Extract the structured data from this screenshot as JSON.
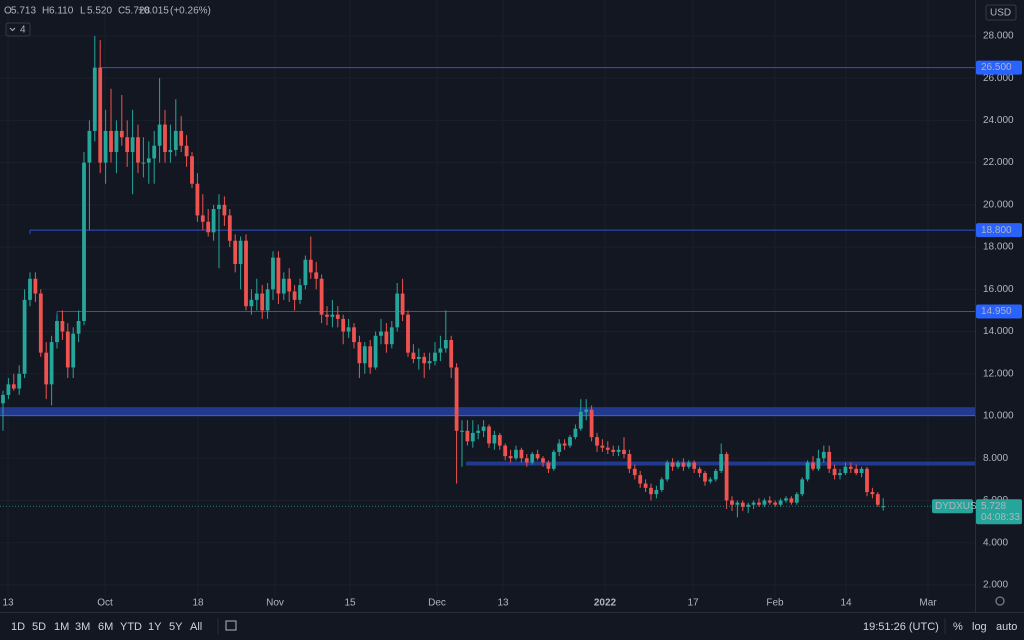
{
  "chart_data": {
    "type": "candlestick",
    "symbol": "DYDXUSD",
    "legend": [
      {
        "key": "O",
        "value": "5.713"
      },
      {
        "key": "H",
        "value": "6.110"
      },
      {
        "key": "L",
        "value": "5.520"
      },
      {
        "key": "C",
        "value": "5.728"
      }
    ],
    "change": "+0.015",
    "change_pct": "(+0.26%)",
    "indicator_count": 4,
    "currency": "USD",
    "up_color": "#26a69a",
    "down_color": "#ef5350",
    "level_color": "#2f4fd0",
    "zone_color": "#213a8f",
    "ylim": [
      1.43,
      29.7
    ],
    "yticks": [
      {
        "value": 2,
        "label": "2.000"
      },
      {
        "value": 4,
        "label": "4.000"
      },
      {
        "value": 6,
        "label": "6.000"
      },
      {
        "value": 8,
        "label": "8.000"
      },
      {
        "value": 10,
        "label": "10.000"
      },
      {
        "value": 12,
        "label": "12.000"
      },
      {
        "value": 14,
        "label": "14.000"
      },
      {
        "value": 16,
        "label": "16.000"
      },
      {
        "value": 18,
        "label": "18.000"
      },
      {
        "value": 20,
        "label": "20.000"
      },
      {
        "value": 22,
        "label": "22.000"
      },
      {
        "value": 24,
        "label": "24.000"
      },
      {
        "value": 26,
        "label": "26.000"
      },
      {
        "value": 28,
        "label": "28.000"
      }
    ],
    "xticks": [
      "13",
      "Oct",
      "18",
      "Nov",
      "15",
      "Dec",
      "13",
      "2022",
      "17",
      "Feb",
      "14",
      "Mar"
    ],
    "levels": [
      {
        "value": 26.5,
        "label": "26.500"
      },
      {
        "value": 18.8,
        "label": "18.800"
      },
      {
        "value": 14.95,
        "label": "14.950"
      },
      {
        "value": 7.75
      }
    ],
    "zone": {
      "from": 10.02,
      "to": 10.42
    },
    "last_price": 5.728,
    "countdown": "04:08:33",
    "candles": [
      [
        10.6,
        11.2,
        9.3,
        11.0
      ],
      [
        11.0,
        11.8,
        10.8,
        11.5
      ],
      [
        11.5,
        12.0,
        11.2,
        11.3
      ],
      [
        11.3,
        12.4,
        11.0,
        12.0
      ],
      [
        12.0,
        16.0,
        11.8,
        15.5
      ],
      [
        15.5,
        16.8,
        15.2,
        16.5
      ],
      [
        16.5,
        16.8,
        15.4,
        15.8
      ],
      [
        15.8,
        16.0,
        12.8,
        13.0
      ],
      [
        13.0,
        13.5,
        10.8,
        11.5
      ],
      [
        11.5,
        13.8,
        10.5,
        13.5
      ],
      [
        13.5,
        14.8,
        13.2,
        14.5
      ],
      [
        14.5,
        15.0,
        13.6,
        14.0
      ],
      [
        14.0,
        14.4,
        11.8,
        12.3
      ],
      [
        12.3,
        14.2,
        11.8,
        13.9
      ],
      [
        13.9,
        15.0,
        13.5,
        14.5
      ],
      [
        14.5,
        22.5,
        14.3,
        22.0
      ],
      [
        22.0,
        24.0,
        18.8,
        23.5
      ],
      [
        23.5,
        28.0,
        23.0,
        26.5
      ],
      [
        26.5,
        27.8,
        21.5,
        22.0
      ],
      [
        22.0,
        24.5,
        21.0,
        23.5
      ],
      [
        23.5,
        25.5,
        22.0,
        22.5
      ],
      [
        22.5,
        24.0,
        21.5,
        23.5
      ],
      [
        23.5,
        25.2,
        22.8,
        23.2
      ],
      [
        23.2,
        24.0,
        21.8,
        22.5
      ],
      [
        22.5,
        24.5,
        20.5,
        23.2
      ],
      [
        23.2,
        23.8,
        21.5,
        22.0
      ],
      [
        22.0,
        23.2,
        21.3,
        22.0
      ],
      [
        22.0,
        23.0,
        21.0,
        22.2
      ],
      [
        22.2,
        23.5,
        21.0,
        22.8
      ],
      [
        22.8,
        26.0,
        22.0,
        23.8
      ],
      [
        23.8,
        24.5,
        22.0,
        22.5
      ],
      [
        22.5,
        23.8,
        22.0,
        22.6
      ],
      [
        22.6,
        25.0,
        22.3,
        23.5
      ],
      [
        23.5,
        24.2,
        22.5,
        22.8
      ],
      [
        22.8,
        23.3,
        21.8,
        22.3
      ],
      [
        22.3,
        22.5,
        20.8,
        21.0
      ],
      [
        21.0,
        21.5,
        19.2,
        19.5
      ],
      [
        19.5,
        20.5,
        18.8,
        19.2
      ],
      [
        19.2,
        19.8,
        18.5,
        18.7
      ],
      [
        18.7,
        20.0,
        18.3,
        19.8
      ],
      [
        19.8,
        20.5,
        17.0,
        20.0
      ],
      [
        20.0,
        20.4,
        19.0,
        19.5
      ],
      [
        19.5,
        19.8,
        18.0,
        18.3
      ],
      [
        18.3,
        18.6,
        16.8,
        17.2
      ],
      [
        17.2,
        18.5,
        16.0,
        18.3
      ],
      [
        18.3,
        18.6,
        15.0,
        15.2
      ],
      [
        15.2,
        16.0,
        14.8,
        15.5
      ],
      [
        15.5,
        16.5,
        15.0,
        15.8
      ],
      [
        15.8,
        16.2,
        14.6,
        15.0
      ],
      [
        15.0,
        16.3,
        14.6,
        16.0
      ],
      [
        16.0,
        17.8,
        15.5,
        17.5
      ],
      [
        17.5,
        17.8,
        15.3,
        15.8
      ],
      [
        15.8,
        16.8,
        15.5,
        16.5
      ],
      [
        16.5,
        17.0,
        15.4,
        15.9
      ],
      [
        15.9,
        16.2,
        15.0,
        15.5
      ],
      [
        15.5,
        16.5,
        15.3,
        16.2
      ],
      [
        16.2,
        17.6,
        16.0,
        17.4
      ],
      [
        17.4,
        18.5,
        16.5,
        16.8
      ],
      [
        16.8,
        17.3,
        16.0,
        16.5
      ],
      [
        16.5,
        16.7,
        14.4,
        14.8
      ],
      [
        14.8,
        15.2,
        14.3,
        14.7
      ],
      [
        14.7,
        15.5,
        14.2,
        14.8
      ],
      [
        14.8,
        15.2,
        14.2,
        14.6
      ],
      [
        14.6,
        14.8,
        13.4,
        14.0
      ],
      [
        14.0,
        14.6,
        13.7,
        14.2
      ],
      [
        14.2,
        14.4,
        13.2,
        13.5
      ],
      [
        13.5,
        13.8,
        11.8,
        12.5
      ],
      [
        12.5,
        13.5,
        12.0,
        13.3
      ],
      [
        13.3,
        13.6,
        12.0,
        12.3
      ],
      [
        12.3,
        14.0,
        12.2,
        13.8
      ],
      [
        13.8,
        14.6,
        13.4,
        14.0
      ],
      [
        14.0,
        14.4,
        13.0,
        13.4
      ],
      [
        13.4,
        14.5,
        13.2,
        14.2
      ],
      [
        14.2,
        16.3,
        14.0,
        15.8
      ],
      [
        15.8,
        16.5,
        14.5,
        14.8
      ],
      [
        14.8,
        15.0,
        12.8,
        13.0
      ],
      [
        13.0,
        13.4,
        12.5,
        12.7
      ],
      [
        12.7,
        13.2,
        12.2,
        12.8
      ],
      [
        12.8,
        13.0,
        11.8,
        12.5
      ],
      [
        12.5,
        13.0,
        12.2,
        12.6
      ],
      [
        12.6,
        13.5,
        12.4,
        13.0
      ],
      [
        13.0,
        13.8,
        12.6,
        13.2
      ],
      [
        13.2,
        15.0,
        13.0,
        13.6
      ],
      [
        13.6,
        13.8,
        11.8,
        12.3
      ],
      [
        12.3,
        12.5,
        6.8,
        9.3
      ],
      [
        9.3,
        9.8,
        7.6,
        9.3
      ],
      [
        9.3,
        9.8,
        8.6,
        8.8
      ],
      [
        8.8,
        9.8,
        8.5,
        9.2
      ],
      [
        9.2,
        9.6,
        8.9,
        9.3
      ],
      [
        9.3,
        9.8,
        9.0,
        9.5
      ],
      [
        9.5,
        9.6,
        8.5,
        8.7
      ],
      [
        8.7,
        9.3,
        8.4,
        9.1
      ],
      [
        9.1,
        9.2,
        8.4,
        8.6
      ],
      [
        8.6,
        8.7,
        7.9,
        8.1
      ],
      [
        8.1,
        8.4,
        7.8,
        8.0
      ],
      [
        8.0,
        8.6,
        7.9,
        8.4
      ],
      [
        8.4,
        8.5,
        7.8,
        8.0
      ],
      [
        8.0,
        8.2,
        7.6,
        7.8
      ],
      [
        7.8,
        8.3,
        7.7,
        8.2
      ],
      [
        8.2,
        8.4,
        7.9,
        8.0
      ],
      [
        8.0,
        8.1,
        7.6,
        7.8
      ],
      [
        7.8,
        7.9,
        7.3,
        7.5
      ],
      [
        7.5,
        8.4,
        7.4,
        8.3
      ],
      [
        8.3,
        8.9,
        8.1,
        8.7
      ],
      [
        8.7,
        8.9,
        8.4,
        8.6
      ],
      [
        8.6,
        9.1,
        8.5,
        9.0
      ],
      [
        9.0,
        9.6,
        8.9,
        9.4
      ],
      [
        9.4,
        10.8,
        9.3,
        10.2
      ],
      [
        10.2,
        10.8,
        9.8,
        10.3
      ],
      [
        10.3,
        10.5,
        8.8,
        9.0
      ],
      [
        9.0,
        9.2,
        8.3,
        8.6
      ],
      [
        8.6,
        8.9,
        8.3,
        8.5
      ],
      [
        8.5,
        8.8,
        8.2,
        8.4
      ],
      [
        8.4,
        8.6,
        8.1,
        8.3
      ],
      [
        8.3,
        8.6,
        8.1,
        8.4
      ],
      [
        8.4,
        9.0,
        8.0,
        8.2
      ],
      [
        8.2,
        8.4,
        7.3,
        7.5
      ],
      [
        7.5,
        7.7,
        7.0,
        7.2
      ],
      [
        7.2,
        7.4,
        6.6,
        6.8
      ],
      [
        6.8,
        7.0,
        6.4,
        6.6
      ],
      [
        6.6,
        6.8,
        6.0,
        6.3
      ],
      [
        6.3,
        6.7,
        6.1,
        6.5
      ],
      [
        6.5,
        7.1,
        6.4,
        7.0
      ],
      [
        7.0,
        7.9,
        6.9,
        7.8
      ],
      [
        7.8,
        8.0,
        7.4,
        7.6
      ],
      [
        7.6,
        7.9,
        7.5,
        7.8
      ],
      [
        7.8,
        8.0,
        7.4,
        7.6
      ],
      [
        7.6,
        7.9,
        7.5,
        7.8
      ],
      [
        7.8,
        7.9,
        7.3,
        7.5
      ],
      [
        7.5,
        7.6,
        7.1,
        7.3
      ],
      [
        7.3,
        7.4,
        6.7,
        6.9
      ],
      [
        6.9,
        7.1,
        6.8,
        7.0
      ],
      [
        7.0,
        7.5,
        6.9,
        7.4
      ],
      [
        7.4,
        8.7,
        7.3,
        8.2
      ],
      [
        8.2,
        8.3,
        5.6,
        6.0
      ],
      [
        6.0,
        6.2,
        5.5,
        5.8
      ],
      [
        5.8,
        6.0,
        5.2,
        5.9
      ],
      [
        5.9,
        6.0,
        5.5,
        5.7
      ],
      [
        5.7,
        5.9,
        5.4,
        5.8
      ],
      [
        5.8,
        6.0,
        5.6,
        5.9
      ],
      [
        5.9,
        6.1,
        5.7,
        5.8
      ],
      [
        5.8,
        6.1,
        5.7,
        6.0
      ],
      [
        6.0,
        6.2,
        5.8,
        5.9
      ],
      [
        5.9,
        6.0,
        5.7,
        5.8
      ],
      [
        5.8,
        6.1,
        5.7,
        6.0
      ],
      [
        6.0,
        6.2,
        5.9,
        6.1
      ],
      [
        6.1,
        6.2,
        5.8,
        5.9
      ],
      [
        5.9,
        6.4,
        5.8,
        6.3
      ],
      [
        6.3,
        7.1,
        6.2,
        7.0
      ],
      [
        7.0,
        7.9,
        6.9,
        7.8
      ],
      [
        7.8,
        8.1,
        7.4,
        7.5
      ],
      [
        7.5,
        8.4,
        7.4,
        8.0
      ],
      [
        8.0,
        8.6,
        7.8,
        8.3
      ],
      [
        8.3,
        8.6,
        7.3,
        7.5
      ],
      [
        7.5,
        7.7,
        7.0,
        7.2
      ],
      [
        7.2,
        7.5,
        7.0,
        7.3
      ],
      [
        7.3,
        7.8,
        7.2,
        7.6
      ],
      [
        7.6,
        7.8,
        7.3,
        7.5
      ],
      [
        7.5,
        7.7,
        7.2,
        7.3
      ],
      [
        7.3,
        7.6,
        7.1,
        7.5
      ],
      [
        7.5,
        7.6,
        6.2,
        6.4
      ],
      [
        6.4,
        6.6,
        6.1,
        6.3
      ],
      [
        6.3,
        6.4,
        5.7,
        5.8
      ],
      [
        5.713,
        6.11,
        5.52,
        5.728
      ]
    ]
  },
  "toolbar": {
    "ranges": [
      "1D",
      "5D",
      "1M",
      "3M",
      "6M",
      "YTD",
      "1Y",
      "5Y",
      "All"
    ],
    "time": "19:51:26 (UTC)",
    "buttons": [
      "%",
      "log",
      "auto"
    ]
  }
}
